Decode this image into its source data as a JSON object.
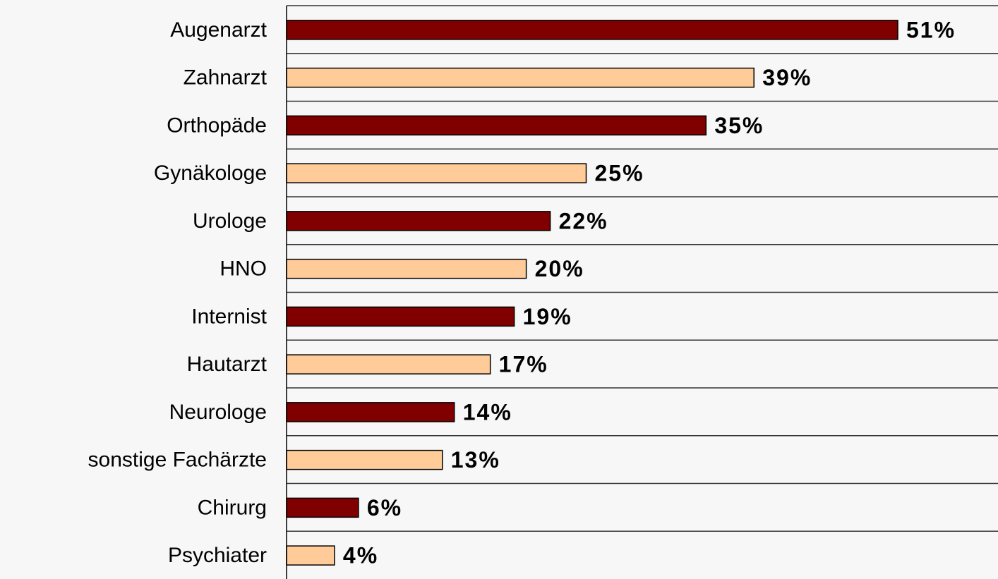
{
  "chart_data": {
    "type": "bar",
    "orientation": "horizontal",
    "categories": [
      "Augenarzt",
      "Zahnarzt",
      "Orthopäde",
      "Gynäkologe",
      "Urologe",
      "HNO",
      "Internist",
      "Hautarzt",
      "Neurologe",
      "sonstige Fachärzte",
      "Chirurg",
      "Psychiater"
    ],
    "values": [
      51,
      39,
      35,
      25,
      22,
      20,
      19,
      17,
      14,
      13,
      6,
      4
    ],
    "value_labels": [
      "51%",
      "39%",
      "35%",
      "25%",
      "22%",
      "20%",
      "19%",
      "17%",
      "14%",
      "13%",
      "6%",
      "4%"
    ],
    "colors": [
      "#800000",
      "#ffcc99",
      "#800000",
      "#ffcc99",
      "#800000",
      "#ffcc99",
      "#800000",
      "#ffcc99",
      "#800000",
      "#ffcc99",
      "#800000",
      "#ffcc99"
    ]
  }
}
